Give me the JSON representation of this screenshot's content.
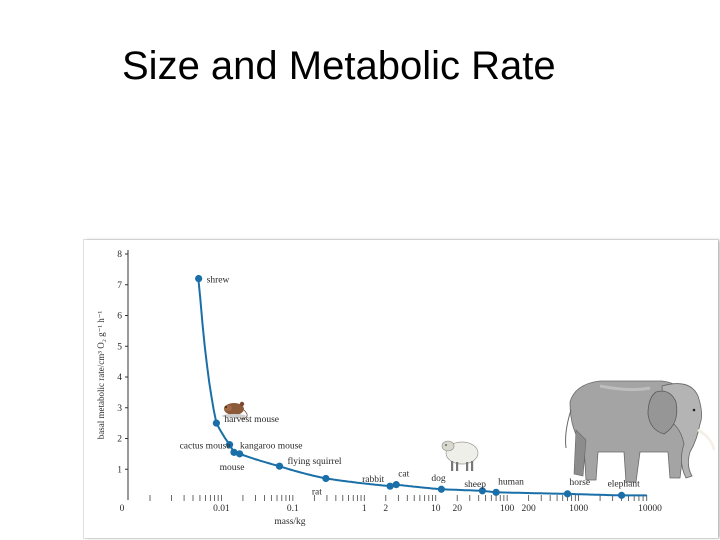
{
  "slide": {
    "title": "Size and Metabolic Rate"
  },
  "chart_data": {
    "type": "line",
    "title": "",
    "xlabel": "mass/kg",
    "ylabel": "basal metabolic rate/cm³ O₂ g⁻¹ h⁻¹",
    "xscale": "log",
    "xlim": [
      0.001,
      10000
    ],
    "ylim": [
      0,
      8
    ],
    "y_ticks": [
      "0",
      "1",
      "2",
      "3",
      "4",
      "5",
      "6",
      "7",
      "8"
    ],
    "x_ticks": [
      {
        "value": 0.01,
        "label": "0.01"
      },
      {
        "value": 0.1,
        "label": "0.1"
      },
      {
        "value": 1,
        "label": "1"
      },
      {
        "value": 2,
        "label": "2"
      },
      {
        "value": 10,
        "label": "10"
      },
      {
        "value": 20,
        "label": "20"
      },
      {
        "value": 100,
        "label": "100"
      },
      {
        "value": 200,
        "label": "200"
      },
      {
        "value": 1000,
        "label": "1000"
      },
      {
        "value": 10000,
        "label": "10000"
      }
    ],
    "x_origin_label": "0",
    "series": [
      {
        "color": "#1a6fa8",
        "points": [
          {
            "name": "shrew",
            "x": 0.0048,
            "y": 7.2
          },
          {
            "name": "harvest mouse",
            "x": 0.0085,
            "y": 2.5
          },
          {
            "name": "cactus mouse",
            "x": 0.013,
            "y": 1.8
          },
          {
            "name": "kangaroo mouse",
            "x": 0.015,
            "y": 1.55
          },
          {
            "name": "mouse",
            "x": 0.018,
            "y": 1.5
          },
          {
            "name": "flying squirrel",
            "x": 0.065,
            "y": 1.1
          },
          {
            "name": "rat",
            "x": 0.29,
            "y": 0.7
          },
          {
            "name": "rabbit",
            "x": 2.3,
            "y": 0.45
          },
          {
            "name": "cat",
            "x": 2.8,
            "y": 0.5
          },
          {
            "name": "dog",
            "x": 12,
            "y": 0.35
          },
          {
            "name": "sheep",
            "x": 45,
            "y": 0.3
          },
          {
            "name": "human",
            "x": 70,
            "y": 0.25
          },
          {
            "name": "horse",
            "x": 700,
            "y": 0.2
          },
          {
            "name": "elephant",
            "x": 4000,
            "y": 0.15
          }
        ]
      }
    ],
    "grid": false,
    "legend": "none"
  },
  "icons": {
    "harvest_mouse": "mouse-illustration",
    "sheep": "sheep-illustration",
    "elephant": "elephant-illustration"
  }
}
